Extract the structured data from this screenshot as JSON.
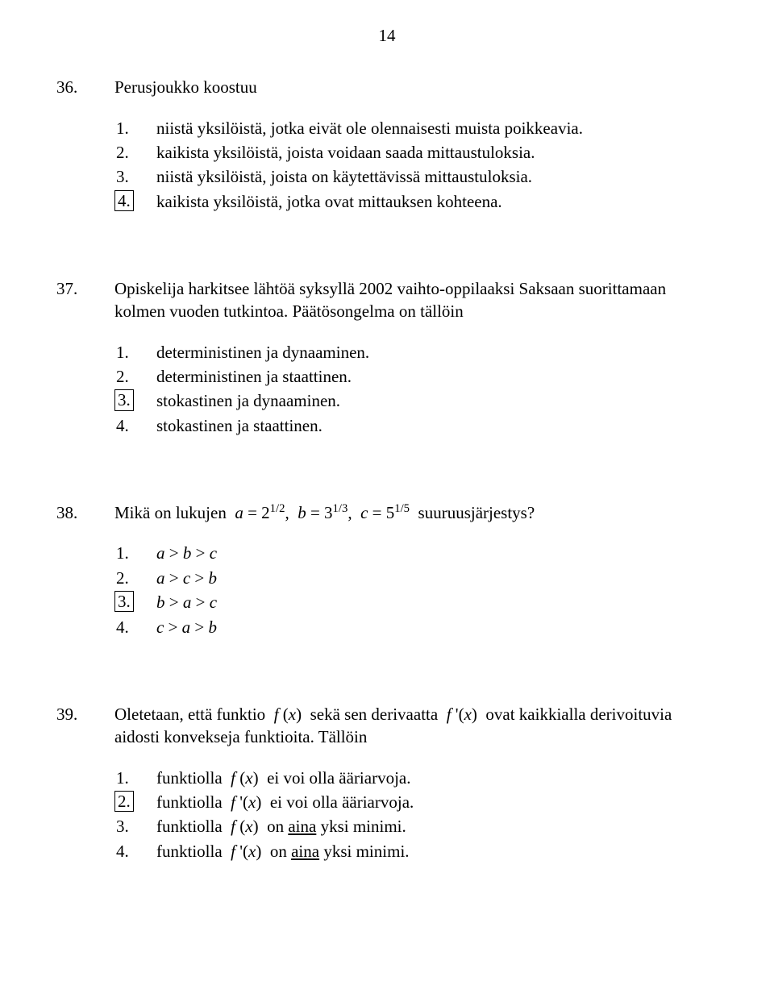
{
  "page_number": "14",
  "questions": [
    {
      "num": "36.",
      "stem_html": "Perusjoukko koostuu",
      "options": [
        {
          "num": "1.",
          "boxed": false,
          "html": "niistä yksilöistä, jotka eivät ole olennaisesti muista poikkeavia."
        },
        {
          "num": "2.",
          "boxed": false,
          "html": "kaikista yksilöistä, joista voidaan saada mittaustuloksia."
        },
        {
          "num": "3.",
          "boxed": false,
          "html": "niistä yksilöistä, joista on käytettävissä mittaustuloksia."
        },
        {
          "num": "4.",
          "boxed": true,
          "html": "kaikista yksilöistä, jotka ovat mittauksen kohteena."
        }
      ]
    },
    {
      "num": "37.",
      "stem_html": "Opiskelija harkitsee lähtöä syksyllä 2002 vaihto-oppilaaksi Saksaan suorittamaan kolmen vuoden tutkintoa. Päätösongelma on tällöin",
      "options": [
        {
          "num": "1.",
          "boxed": false,
          "html": "deterministinen ja dynaaminen."
        },
        {
          "num": "2.",
          "boxed": false,
          "html": "deterministinen ja staattinen."
        },
        {
          "num": "3.",
          "boxed": true,
          "html": "stokastinen ja dynaaminen."
        },
        {
          "num": "4.",
          "boxed": false,
          "html": "stokastinen ja staattinen."
        }
      ]
    },
    {
      "num": "38.",
      "stem_html": "Mikä on lukujen &nbsp;<span class='math'>a</span> = 2<sup>1/2</sup>,&nbsp; <span class='math'>b</span> = 3<sup>1/3</sup>,&nbsp; <span class='math'>c</span> = 5<sup>1/5</sup>&nbsp; suuruusjärjestys?",
      "options": [
        {
          "num": "1.",
          "boxed": false,
          "html": "<span class='math'>a</span> &gt; <span class='math'>b</span> &gt; <span class='math'>c</span>"
        },
        {
          "num": "2.",
          "boxed": false,
          "html": "<span class='math'>a</span> &gt; <span class='math'>c</span> &gt; <span class='math'>b</span>"
        },
        {
          "num": "3.",
          "boxed": true,
          "html": "<span class='math'>b</span> &gt; <span class='math'>a</span> &gt; <span class='math'>c</span>"
        },
        {
          "num": "4.",
          "boxed": false,
          "html": "<span class='math'>c</span> &gt; <span class='math'>a</span> &gt; <span class='math'>b</span>"
        }
      ]
    },
    {
      "num": "39.",
      "stem_html": "Oletetaan, että funktio &nbsp;<span class='math'>f</span> (<span class='math'>x</span>)&nbsp; sekä sen derivaatta &nbsp;<span class='math'>f</span> '(<span class='math'>x</span>)&nbsp; ovat kaikkialla derivoituvia aidosti konvekseja funktioita. Tällöin",
      "options": [
        {
          "num": "1.",
          "boxed": false,
          "html": "funktiolla &nbsp;<span class='math'>f</span> (<span class='math'>x</span>)&nbsp; ei voi olla ääriarvoja."
        },
        {
          "num": "2.",
          "boxed": true,
          "html": "funktiolla &nbsp;<span class='math'>f</span> '(<span class='math'>x</span>)&nbsp; ei voi olla ääriarvoja."
        },
        {
          "num": "3.",
          "boxed": false,
          "html": "funktiolla &nbsp;<span class='math'>f</span> (<span class='math'>x</span>)&nbsp; on <span class='underline'>aina</span> yksi minimi."
        },
        {
          "num": "4.",
          "boxed": false,
          "html": "funktiolla &nbsp;<span class='math'>f</span> '(<span class='math'>x</span>)&nbsp; on <span class='underline'>aina</span> yksi minimi."
        }
      ]
    }
  ]
}
